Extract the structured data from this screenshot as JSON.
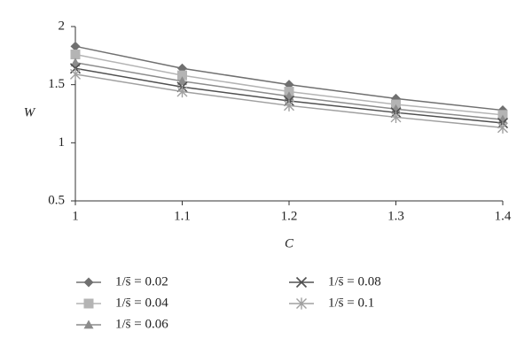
{
  "chart_data": {
    "type": "line",
    "xlabel": "C",
    "ylabel": "W",
    "x": [
      1,
      1.1,
      1.2,
      1.3,
      1.4
    ],
    "xlim": [
      1,
      1.4
    ],
    "xticks": [
      1,
      1.1,
      1.2,
      1.3,
      1.4
    ],
    "ylim": [
      0.5,
      2
    ],
    "yticks": [
      0.5,
      1,
      1.5,
      2
    ],
    "grid": false,
    "series": [
      {
        "name": "1/s̄ = 0.02",
        "color": "#707070",
        "marker": "diamond",
        "values": [
          1.83,
          1.64,
          1.5,
          1.38,
          1.28
        ]
      },
      {
        "name": "1/s̄ = 0.04",
        "color": "#b4b4b4",
        "marker": "square",
        "values": [
          1.76,
          1.58,
          1.44,
          1.33,
          1.24
        ]
      },
      {
        "name": "1/s̄ = 0.06",
        "color": "#8c8c8c",
        "marker": "triangle",
        "values": [
          1.69,
          1.53,
          1.4,
          1.29,
          1.2
        ]
      },
      {
        "name": "1/s̄ = 0.08",
        "color": "#505050",
        "marker": "x",
        "values": [
          1.64,
          1.48,
          1.36,
          1.26,
          1.17
        ]
      },
      {
        "name": "1/s̄ = 0.1",
        "color": "#a0a0a0",
        "marker": "asterisk",
        "values": [
          1.59,
          1.44,
          1.32,
          1.22,
          1.13
        ]
      }
    ]
  }
}
